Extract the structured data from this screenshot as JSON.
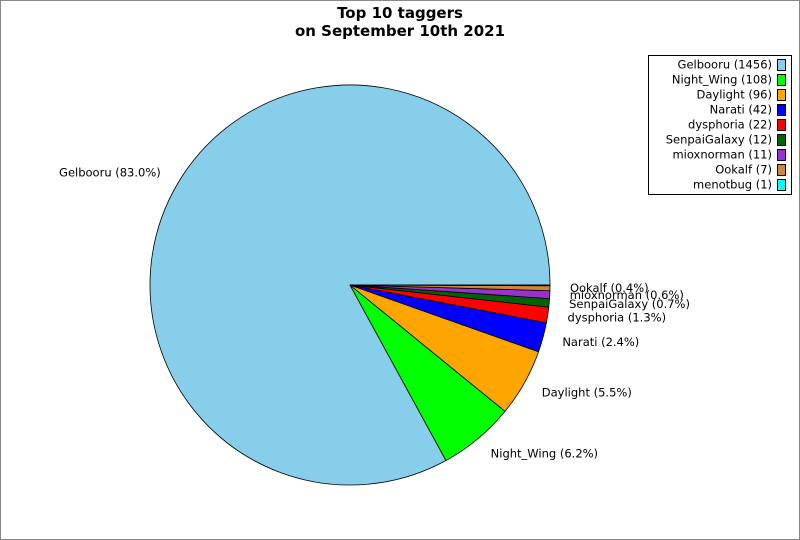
{
  "chart_data": {
    "type": "pie",
    "title": "Top 10 taggers\non September 10th 2021",
    "categories": [
      "Gelbooru (1456)",
      "Night_Wing (108)",
      "Daylight (96)",
      "Narati (42)",
      "dysphoria (22)",
      "SenpaiGalaxy (12)",
      "mioxnorman (11)",
      "Ookalf (7)",
      "menotbug (1)"
    ],
    "values": [
      1456,
      108,
      96,
      42,
      22,
      12,
      11,
      7,
      1
    ],
    "value_labels": [
      "Gelbooru (83.0%)",
      "Night_Wing (6.2%)",
      "Daylight (5.5%)",
      "Narati (2.4%)",
      "dysphoria (1.3%)",
      "SenpaiGalaxy (0.7%)",
      "mioxnorman (0.6%)",
      "Ookalf (0.4%)",
      ""
    ],
    "colors": [
      "#87ceeb",
      "#00ff00",
      "#ffa500",
      "#0000ff",
      "#ff0000",
      "#006400",
      "#9932cc",
      "#cd853f",
      "#00ffff"
    ],
    "legend": "upper right"
  }
}
